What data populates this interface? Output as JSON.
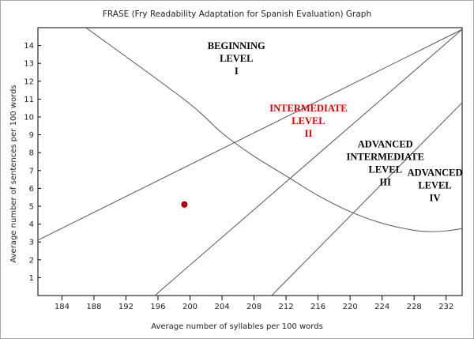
{
  "chart_data": {
    "type": "scatter",
    "title": "FRASE (Fry Readability Adaptation for Spanish Evaluation) Graph",
    "xlabel": "Average number of syllables per 100 words",
    "ylabel": "Average number of sentences per 100 words",
    "xlim": [
      181,
      234
    ],
    "ylim": [
      0,
      15
    ],
    "xticks": [
      184,
      188,
      192,
      196,
      200,
      204,
      208,
      212,
      216,
      220,
      224,
      228,
      232
    ],
    "yticks": [
      1,
      2,
      3,
      4,
      5,
      6,
      7,
      8,
      9,
      10,
      11,
      12,
      13,
      14
    ],
    "grid": false,
    "point": {
      "x": 199.3,
      "y": 5.1,
      "color": "#cc0000"
    },
    "boundaries": [
      {
        "name": "",
        "points": [
          [
            181,
            3.1
          ],
          [
            234,
            14.9
          ]
        ]
      },
      {
        "name": "",
        "points": [
          [
            195.6,
            0
          ],
          [
            234,
            14.9
          ]
        ]
      },
      {
        "name": "",
        "points": [
          [
            210.2,
            0
          ],
          [
            234,
            10.8
          ]
        ]
      },
      {
        "name": "",
        "points": [
          [
            187,
            15
          ],
          [
            199.5,
            10.9
          ],
          [
            204,
            9.1
          ],
          [
            208,
            7.8
          ],
          [
            212,
            6.7
          ],
          [
            216,
            5.6
          ],
          [
            220,
            4.7
          ],
          [
            224,
            4.05
          ],
          [
            228,
            3.65
          ],
          [
            230,
            3.58
          ],
          [
            232,
            3.62
          ],
          [
            234,
            3.75
          ]
        ]
      }
    ],
    "zones": [
      {
        "lines": [
          "BEGINNING",
          "LEVEL",
          "I"
        ],
        "x": 205.8,
        "y": 13.8,
        "color": "#000000"
      },
      {
        "lines": [
          "INTERMEDIATE",
          "LEVEL",
          "II"
        ],
        "x": 214.8,
        "y": 10.3,
        "color": "#e00000"
      },
      {
        "lines": [
          "ADVANCED",
          "INTERMEDIATE",
          "LEVEL",
          "III"
        ],
        "x": 224.4,
        "y": 8.3,
        "color": "#000000"
      },
      {
        "lines": [
          "ADVANCED",
          "LEVEL",
          "IV"
        ],
        "x": 230.6,
        "y": 6.7,
        "color": "#000000"
      }
    ]
  }
}
